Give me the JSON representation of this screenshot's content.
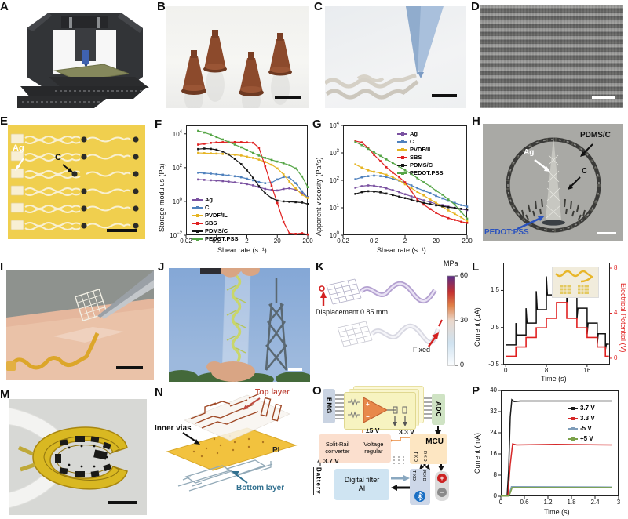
{
  "panels": {
    "A": {
      "letter": "A"
    },
    "B": {
      "letter": "B"
    },
    "C": {
      "letter": "C"
    },
    "D": {
      "letter": "D"
    },
    "E": {
      "letter": "E",
      "labels": {
        "ag": "Ag",
        "c": "C"
      }
    },
    "F": {
      "letter": "F"
    },
    "G": {
      "letter": "G"
    },
    "H": {
      "letter": "H",
      "labels": {
        "pdmsc": "PDMS/C",
        "ag": "Ag",
        "c": "C",
        "pedot": "PEDOT:PSS"
      }
    },
    "I": {
      "letter": "I"
    },
    "J": {
      "letter": "J"
    },
    "K": {
      "letter": "K",
      "labels": {
        "mpa": "MPa",
        "t60": "60",
        "t30": "30",
        "t0": "0",
        "disp": "Displacement 0.85 mm",
        "fixed": "Fixed"
      }
    },
    "L": {
      "letter": "L"
    },
    "M": {
      "letter": "M"
    },
    "N": {
      "letter": "N",
      "labels": {
        "top": "Top layer",
        "vias": "Inner vias",
        "pi": "PI",
        "bottom": "Bottom layer"
      }
    },
    "O": {
      "letter": "O",
      "labels": {
        "emg": "EMG",
        "adc": "ADC",
        "pm5": "±5 V",
        "v33": "3.3 V",
        "split1": "Split-Rail",
        "split2": "converter",
        "volt1": "Voltage",
        "volt2": "regular",
        "mcu": "MCU",
        "txd": "TXD",
        "rxd": "RXD",
        "v37": "3.7 V",
        "battery": "Battery",
        "filter1": "Digital filter",
        "filter2": "AI",
        "plus": "+",
        "minus": "−"
      }
    },
    "P": {
      "letter": "P"
    }
  },
  "chart_data": {
    "F": {
      "type": "line",
      "xscale": "log",
      "yscale": "log",
      "xlabel": "Shear rate (s⁻¹)",
      "ylabel": "Storage modulus (Pa)",
      "xlim": [
        0.02,
        200
      ],
      "ylim": [
        0.01,
        31623
      ],
      "xticks": [
        {
          "v": 0.02,
          "l": "0.02"
        },
        {
          "v": 0.2,
          "l": "0.2"
        },
        {
          "v": 2,
          "l": "2"
        },
        {
          "v": 20,
          "l": "20"
        },
        {
          "v": 200,
          "l": "200"
        }
      ],
      "yticks": [
        {
          "v": 10000,
          "l": "10^4"
        },
        {
          "v": 100,
          "l": "10^2"
        },
        {
          "v": 1,
          "l": "10^0"
        },
        {
          "v": 0.01,
          "l": "10^−2"
        }
      ],
      "x": [
        0.05,
        0.08,
        0.13,
        0.2,
        0.32,
        0.5,
        0.8,
        1.3,
        2,
        3.2,
        5,
        8,
        13,
        20,
        32,
        50,
        80,
        130,
        200
      ],
      "series": [
        {
          "name": "Ag",
          "color": "#7b52a1",
          "marker": true,
          "values": [
            20,
            19,
            18,
            17,
            16,
            15,
            13.5,
            12,
            10.5,
            9,
            7,
            5.5,
            4.8,
            4.5,
            5.5,
            6,
            5,
            3,
            1.8
          ]
        },
        {
          "name": "C",
          "color": "#4f81bd",
          "marker": true,
          "values": [
            50,
            47,
            44,
            41,
            38,
            35,
            31,
            27,
            22,
            18,
            14,
            12,
            13,
            20,
            28,
            26,
            12,
            4,
            1.7
          ]
        },
        {
          "name": "PVDF/IL",
          "color": "#e6b422",
          "marker": true,
          "values": [
            750,
            720,
            700,
            680,
            650,
            620,
            580,
            520,
            450,
            380,
            300,
            220,
            150,
            90,
            40,
            15,
            6,
            2.5,
            1.6
          ]
        },
        {
          "name": "SBS",
          "color": "#e02020",
          "marker": true,
          "values": [
            2300,
            2600,
            2900,
            3100,
            3200,
            3250,
            3250,
            3200,
            3100,
            2950,
            1500,
            120,
            8,
            0.8,
            0.06,
            0.013,
            0.012,
            0.013,
            0.011
          ]
        },
        {
          "name": "PDMS/C",
          "color": "#161616",
          "marker": true,
          "values": [
            1250,
            1350,
            1300,
            1150,
            900,
            600,
            330,
            160,
            70,
            25,
            8,
            3,
            1.6,
            1.1,
            1.0,
            0.95,
            0.9,
            0.85,
            0.7
          ]
        },
        {
          "name": "PEDOT:PSS",
          "color": "#55a546",
          "marker": true,
          "values": [
            15000,
            12000,
            9000,
            6500,
            4600,
            3300,
            2300,
            1600,
            1100,
            750,
            520,
            380,
            290,
            230,
            180,
            140,
            90,
            30,
            7
          ]
        }
      ]
    },
    "G": {
      "type": "line",
      "xscale": "log",
      "yscale": "log",
      "xlabel": "Shear rate (s⁻¹)",
      "ylabel": "Apparent viscosity (Pa*s)",
      "xlim": [
        0.02,
        200
      ],
      "ylim": [
        1,
        10000
      ],
      "xticks": [
        {
          "v": 0.02,
          "l": "0.02"
        },
        {
          "v": 0.2,
          "l": "0.2"
        },
        {
          "v": 2,
          "l": "2"
        },
        {
          "v": 20,
          "l": "20"
        },
        {
          "v": 200,
          "l": "200"
        }
      ],
      "yticks": [
        {
          "v": 10000,
          "l": "10^4"
        },
        {
          "v": 1000,
          "l": "10^3"
        },
        {
          "v": 100,
          "l": "10^2"
        },
        {
          "v": 10,
          "l": "10^1"
        },
        {
          "v": 1,
          "l": "10^0"
        }
      ],
      "x": [
        0.05,
        0.08,
        0.13,
        0.2,
        0.32,
        0.5,
        0.8,
        1.3,
        2,
        3.2,
        5,
        8,
        13,
        20,
        32,
        50,
        80,
        130,
        200
      ],
      "series": [
        {
          "name": "Ag",
          "color": "#7b52a1",
          "marker": true,
          "values": [
            54,
            61,
            65,
            63,
            58,
            51,
            44,
            37,
            31,
            26,
            22,
            18.5,
            16,
            14,
            12.5,
            11,
            10,
            9,
            8.2
          ]
        },
        {
          "name": "C",
          "color": "#4f81bd",
          "marker": true,
          "values": [
            110,
            128,
            142,
            148,
            143,
            132,
            115,
            97,
            80,
            65,
            52,
            42,
            34,
            27,
            22,
            18,
            15,
            12.5,
            11
          ]
        },
        {
          "name": "PVDF/IL",
          "color": "#e6b422",
          "marker": true,
          "values": [
            380,
            290,
            230,
            205,
            185,
            160,
            130,
            100,
            72,
            52,
            38,
            28,
            20,
            15,
            11,
            8,
            6,
            4.5,
            3.2
          ]
        },
        {
          "name": "SBS",
          "color": "#e02020",
          "marker": true,
          "values": [
            2700,
            2400,
            1500,
            850,
            500,
            300,
            190,
            130,
            85,
            40,
            20,
            13,
            9,
            6.5,
            5,
            4.2,
            3.6,
            3.1,
            2.8
          ]
        },
        {
          "name": "PDMS/C",
          "color": "#161616",
          "marker": true,
          "values": [
            32,
            37,
            40,
            39,
            36.5,
            33,
            29,
            25.5,
            22.5,
            19.5,
            17,
            15,
            13.5,
            12.3,
            11.3,
            10.5,
            9.8,
            9.2,
            8.7
          ]
        },
        {
          "name": "PEDOT:PSS",
          "color": "#55a546",
          "marker": true,
          "values": [
            2500,
            1900,
            1400,
            1050,
            780,
            580,
            430,
            320,
            230,
            170,
            120,
            85,
            60,
            42,
            30,
            20,
            13,
            7,
            4
          ]
        }
      ]
    },
    "L": {
      "type": "line",
      "xscale": "linear",
      "yscale": "linear",
      "xlabel": "Time (s)",
      "ylabel": "Current (µA)",
      "ylabel2": "Electrical Potential (V)",
      "xlim": [
        -0.5,
        20.5
      ],
      "ylim": [
        -0.5,
        2.25
      ],
      "ylim2": [
        -0.56,
        8.49
      ],
      "y2color": "#e02020",
      "xticks": [
        {
          "v": 0,
          "l": "0"
        },
        {
          "v": 8,
          "l": "8"
        },
        {
          "v": 16,
          "l": "16"
        }
      ],
      "yticks": [
        {
          "v": 1.5,
          "l": "1.5"
        },
        {
          "v": 0.5,
          "l": "0.5"
        },
        {
          "v": -0.5,
          "l": "-0.5"
        }
      ],
      "y2ticks": [
        {
          "v": 8,
          "l": "8"
        },
        {
          "v": 4,
          "l": "4"
        },
        {
          "v": 0,
          "l": "0"
        }
      ],
      "series": [
        {
          "name": "Current",
          "color": "#111111",
          "width": 1.5,
          "points": [
            [
              0,
              0.03
            ],
            [
              2,
              0.03
            ],
            [
              2,
              0.62
            ],
            [
              2.2,
              0.3
            ],
            [
              4,
              0.3
            ],
            [
              4,
              1.02
            ],
            [
              4.2,
              0.62
            ],
            [
              6,
              0.62
            ],
            [
              6,
              1.48
            ],
            [
              6.2,
              0.98
            ],
            [
              8,
              0.98
            ],
            [
              8,
              1.88
            ],
            [
              8.2,
              1.38
            ],
            [
              10,
              1.38
            ],
            [
              10,
              2.1
            ],
            [
              10.25,
              1.78
            ],
            [
              12,
              1.78
            ],
            [
              12,
              1.15
            ],
            [
              12.2,
              1.45
            ],
            [
              14,
              1.45
            ],
            [
              14,
              0.72
            ],
            [
              14.2,
              1.02
            ],
            [
              16,
              1.02
            ],
            [
              16,
              0.32
            ],
            [
              16.2,
              0.62
            ],
            [
              18,
              0.62
            ],
            [
              18,
              0.05
            ],
            [
              18.2,
              0.33
            ],
            [
              19.6,
              0.33
            ],
            [
              19.6,
              -0.1
            ],
            [
              19.8,
              0.05
            ],
            [
              20.3,
              0.05
            ]
          ]
        },
        {
          "name": "Potential",
          "color": "#e02020",
          "width": 1.6,
          "axis": "right",
          "points": [
            [
              0,
              0.18
            ],
            [
              2,
              0.18
            ],
            [
              2,
              1.0
            ],
            [
              4,
              1.0
            ],
            [
              4,
              1.85
            ],
            [
              6,
              1.85
            ],
            [
              6,
              2.7
            ],
            [
              8,
              2.7
            ],
            [
              8,
              3.55
            ],
            [
              10,
              3.55
            ],
            [
              10,
              4.95
            ],
            [
              12,
              4.95
            ],
            [
              12,
              3.55
            ],
            [
              14,
              3.55
            ],
            [
              14,
              2.7
            ],
            [
              16,
              2.7
            ],
            [
              16,
              1.85
            ],
            [
              18,
              1.85
            ],
            [
              18,
              1.0
            ],
            [
              19.6,
              1.0
            ],
            [
              19.6,
              0.18
            ],
            [
              20.3,
              0.18
            ]
          ]
        }
      ]
    },
    "P": {
      "type": "line",
      "xscale": "linear",
      "yscale": "linear",
      "xlabel": "Time (s)",
      "ylabel": "Current (mA)",
      "xlim": [
        0,
        3
      ],
      "ylim": [
        0,
        40
      ],
      "xticks": [
        {
          "v": 0,
          "l": "0"
        },
        {
          "v": 0.6,
          "l": "0.6"
        },
        {
          "v": 1.2,
          "l": "1.2"
        },
        {
          "v": 1.8,
          "l": "1.8"
        },
        {
          "v": 2.4,
          "l": "2.4"
        },
        {
          "v": 3,
          "l": "3"
        }
      ],
      "yticks": [
        {
          "v": 0,
          "l": "0"
        },
        {
          "v": 8,
          "l": "8"
        },
        {
          "v": 16,
          "l": "16"
        },
        {
          "v": 24,
          "l": "24"
        },
        {
          "v": 32,
          "l": "32"
        },
        {
          "v": 40,
          "l": "40"
        }
      ],
      "series": [
        {
          "name": "3.7 V",
          "color": "#1a1a1a",
          "width": 1.5,
          "points": [
            [
              0,
              0.2
            ],
            [
              0.16,
              0.2
            ],
            [
              0.2,
              10
            ],
            [
              0.24,
              30
            ],
            [
              0.28,
              36.5
            ],
            [
              0.34,
              35.8
            ],
            [
              0.5,
              36
            ],
            [
              2.82,
              36
            ]
          ]
        },
        {
          "name": "3.3 V",
          "color": "#d62728",
          "width": 1.5,
          "points": [
            [
              0,
              0.2
            ],
            [
              0.18,
              0.2
            ],
            [
              0.24,
              12
            ],
            [
              0.3,
              19.8
            ],
            [
              0.4,
              19.4
            ],
            [
              1.4,
              19.6
            ],
            [
              2.82,
              19.4
            ]
          ]
        },
        {
          "name": "-5 V",
          "color": "#7f9db9",
          "width": 1.5,
          "points": [
            [
              0,
              0.1
            ],
            [
              0.2,
              0.1
            ],
            [
              0.27,
              3.6
            ],
            [
              2.82,
              3.5
            ]
          ]
        },
        {
          "name": "+5 V",
          "color": "#7ca24a",
          "width": 1.5,
          "points": [
            [
              0,
              0.1
            ],
            [
              0.21,
              0.1
            ],
            [
              0.29,
              3.3
            ],
            [
              2.82,
              3.3
            ]
          ]
        }
      ]
    }
  }
}
